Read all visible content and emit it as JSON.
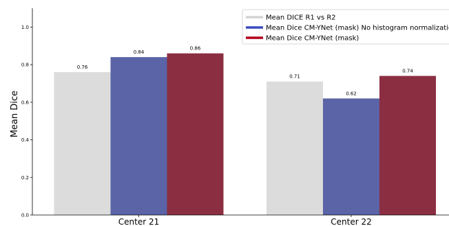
{
  "chart_data": {
    "type": "bar",
    "categories": [
      "Center 21",
      "Center 22"
    ],
    "series": [
      {
        "name": "Mean DICE R1 vs R2",
        "values": [
          0.76,
          0.71
        ],
        "labels": [
          "0.76",
          "0.71"
        ],
        "color": "#dcdcdc"
      },
      {
        "name": "Mean Dice CM-YNet (mask) No histogram normalization",
        "values": [
          0.84,
          0.62
        ],
        "labels": [
          "0.84",
          "0.62"
        ],
        "color": "#5a64a6"
      },
      {
        "name": "Mean Dice CM-YNet (mask)",
        "values": [
          0.86,
          0.74
        ],
        "labels": [
          "0.86",
          "0.74"
        ],
        "color": "#8b2e41"
      }
    ],
    "legend_colors": [
      "#d3d3d3",
      "#3a4bbf",
      "#b3001b"
    ],
    "title": "",
    "xlabel": "",
    "ylabel": "Mean Dice",
    "ylim": [
      0,
      1.1
    ],
    "yticks": [
      "0.0",
      "0.2",
      "0.4",
      "0.6",
      "0.8",
      "1.0"
    ],
    "grid": false,
    "legend_position": "top-right"
  }
}
